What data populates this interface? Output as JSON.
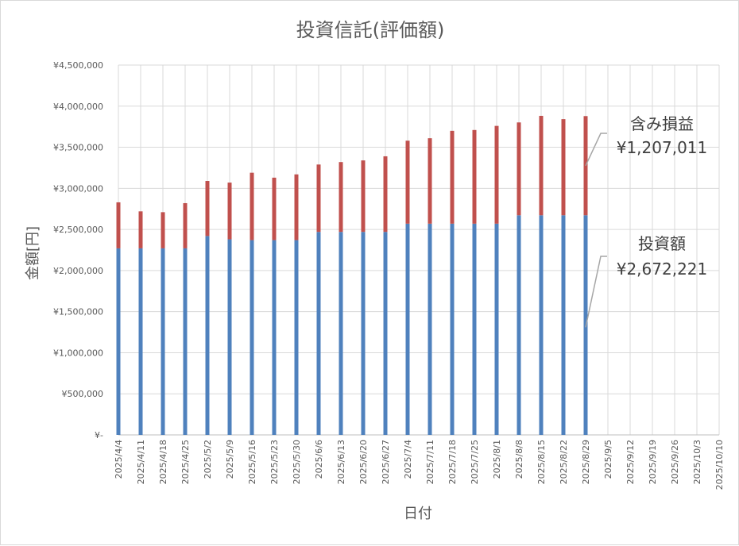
{
  "chart_data": {
    "type": "bar",
    "stacked": true,
    "title": "投資信託(評価額)",
    "xlabel": "日付",
    "ylabel": "金額[円]",
    "ylim": [
      0,
      4500000
    ],
    "y_ticks": [
      {
        "value": 0,
        "label": "¥-"
      },
      {
        "value": 500000,
        "label": "¥500,000"
      },
      {
        "value": 1000000,
        "label": "¥1,000,000"
      },
      {
        "value": 1500000,
        "label": "¥1,500,000"
      },
      {
        "value": 2000000,
        "label": "¥2,000,000"
      },
      {
        "value": 2500000,
        "label": "¥2,500,000"
      },
      {
        "value": 3000000,
        "label": "¥3,000,000"
      },
      {
        "value": 3500000,
        "label": "¥3,500,000"
      },
      {
        "value": 4000000,
        "label": "¥4,000,000"
      },
      {
        "value": 4500000,
        "label": "¥4,500,000"
      }
    ],
    "grid": true,
    "categories": [
      "2025/4/4",
      "2025/4/11",
      "2025/4/18",
      "2025/4/25",
      "2025/5/2",
      "2025/5/9",
      "2025/5/16",
      "2025/5/23",
      "2025/5/30",
      "2025/6/6",
      "2025/6/13",
      "2025/6/20",
      "2025/6/27",
      "2025/7/4",
      "2025/7/11",
      "2025/7/18",
      "2025/7/25",
      "2025/8/1",
      "2025/8/8",
      "2025/8/15",
      "2025/8/22",
      "2025/8/29",
      "2025/9/5",
      "2025/9/12",
      "2025/9/19",
      "2025/9/26",
      "2025/10/3",
      "2025/10/10"
    ],
    "series": [
      {
        "name": "投資額",
        "color": "#4f81bd",
        "values": [
          2270000,
          2270000,
          2270000,
          2270000,
          2420000,
          2380000,
          2370000,
          2370000,
          2370000,
          2470000,
          2470000,
          2470000,
          2470000,
          2570000,
          2570000,
          2570000,
          2570000,
          2570000,
          2672221,
          2672221,
          2672221,
          2672221,
          null,
          null,
          null,
          null,
          null,
          null
        ]
      },
      {
        "name": "含み損益",
        "color": "#c0504d",
        "values": [
          560000,
          450000,
          440000,
          550000,
          670000,
          690000,
          820000,
          760000,
          800000,
          820000,
          850000,
          870000,
          920000,
          1010000,
          1040000,
          1130000,
          1140000,
          1190000,
          1130000,
          1210000,
          1170000,
          1207011,
          null,
          null,
          null,
          null,
          null,
          null
        ]
      }
    ],
    "annotations": [
      {
        "series": "含み損益",
        "name": "含み損益",
        "value": "¥1,207,011"
      },
      {
        "series": "投資額",
        "name": "投資額",
        "value": "¥2,672,221"
      }
    ]
  }
}
